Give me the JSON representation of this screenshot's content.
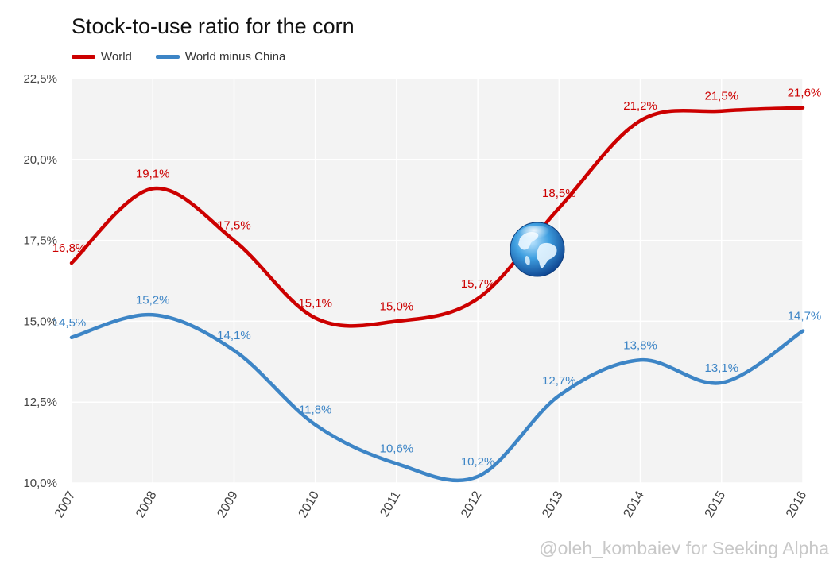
{
  "watermark": "@oleh_kombaiev for Seeking Alpha",
  "colors": {
    "world": "#cc0000",
    "world_minus_china": "#3d85c6",
    "plot_background": "#f3f3f3",
    "gridline": "#ffffff"
  },
  "globe_icon": "globe-icon",
  "chart_data": {
    "type": "line",
    "title": "Stock-to-use ratio for the corn",
    "xlabel": "",
    "ylabel": "",
    "categories": [
      "2007",
      "2008",
      "2009",
      "2010",
      "2011",
      "2012",
      "2013",
      "2014",
      "2015",
      "2016"
    ],
    "ylim": [
      10.0,
      22.5
    ],
    "y_ticks": [
      "10,0%",
      "12,5%",
      "15,0%",
      "17,5%",
      "20,0%",
      "22,5%"
    ],
    "y_tick_values": [
      10.0,
      12.5,
      15.0,
      17.5,
      20.0,
      22.5
    ],
    "grid": true,
    "legend_position": "top-left",
    "series": [
      {
        "name": "World",
        "values": [
          16.8,
          19.1,
          17.5,
          15.1,
          15.0,
          15.7,
          18.5,
          21.2,
          21.5,
          21.6
        ],
        "labels": [
          "16,8%",
          "19,1%",
          "17,5%",
          "15,1%",
          "15,0%",
          "15,7%",
          "18,5%",
          "21,2%",
          "21,5%",
          "21,6%"
        ]
      },
      {
        "name": "World minus China",
        "values": [
          14.5,
          15.2,
          14.1,
          11.8,
          10.6,
          10.2,
          12.7,
          13.8,
          13.1,
          14.7
        ],
        "labels": [
          "14,5%",
          "15,2%",
          "14,1%",
          "11,8%",
          "10,6%",
          "10,2%",
          "12,7%",
          "13,8%",
          "13,1%",
          "14,7%"
        ]
      }
    ]
  }
}
